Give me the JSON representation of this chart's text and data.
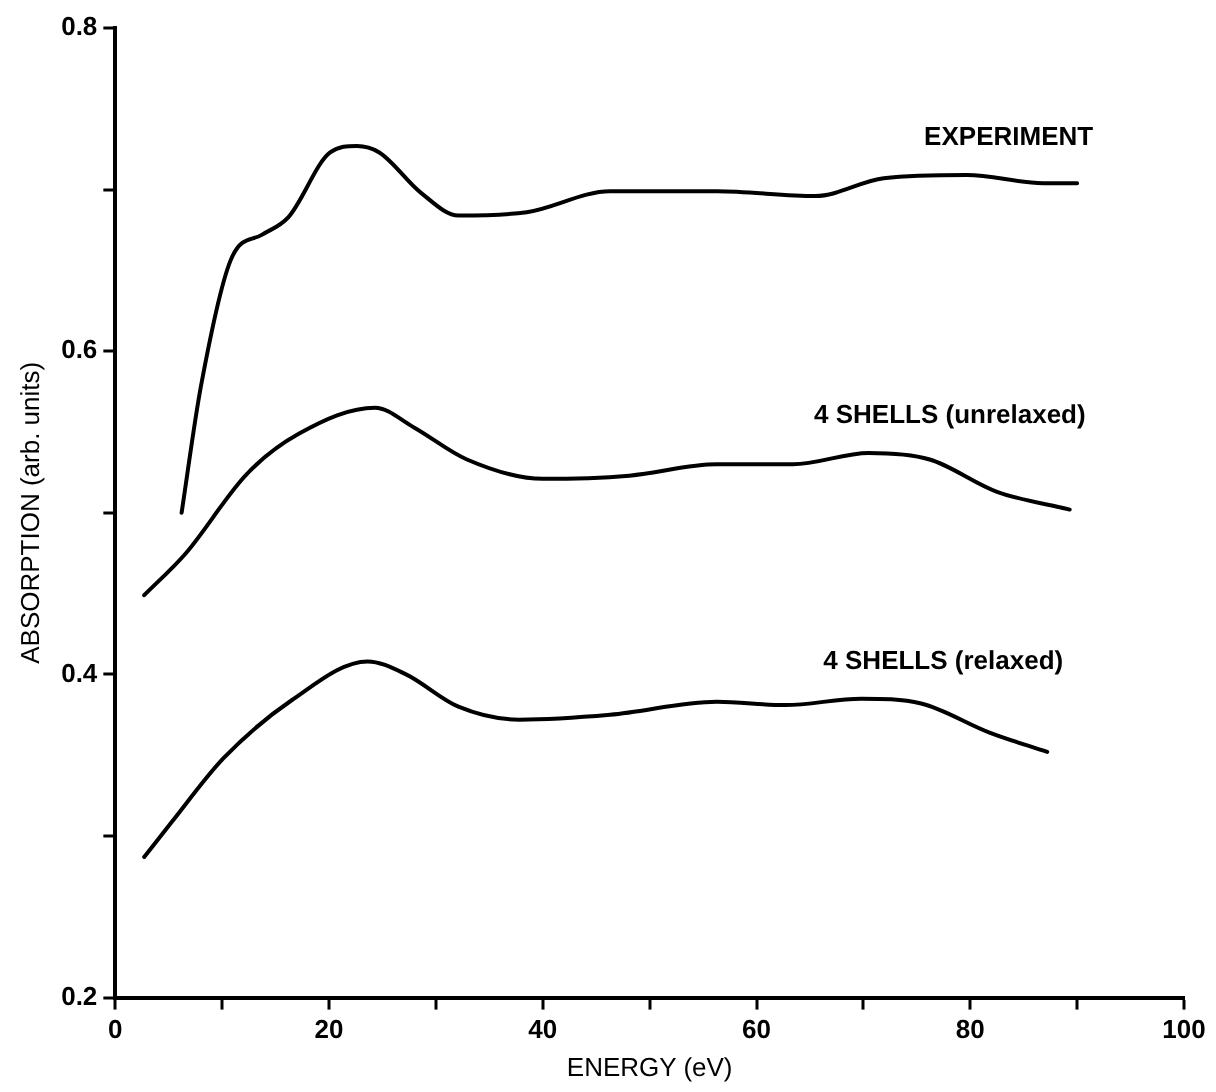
{
  "chart_data": {
    "type": "line",
    "xlabel": "ENERGY (eV)",
    "ylabel": "ABSORPTION (arb. units)",
    "xlim": [
      0,
      100
    ],
    "ylim": [
      0.2,
      0.8
    ],
    "xticks": [
      0,
      {
        "value": 10,
        "label": null
      },
      20,
      {
        "value": 30,
        "label": null
      },
      40,
      {
        "value": 50,
        "label": null
      },
      60,
      {
        "value": 70,
        "label": null
      },
      80,
      {
        "value": 90,
        "label": null
      },
      100
    ],
    "yticks": [
      0.2,
      {
        "value": 0.3,
        "label": null
      },
      0.4,
      {
        "value": 0.5,
        "label": null
      },
      0.6,
      {
        "value": 0.7,
        "label": null
      },
      0.8
    ],
    "legend": false,
    "marker": "none",
    "line_style": "solid",
    "series": [
      {
        "name": "EXPERIMENT",
        "color": "#000000",
        "x": [
          6.2,
          8,
          10.9,
          13.7,
          16.2,
          20.1,
          22.6,
          24.7,
          28.6,
          32.1,
          38.5,
          46.3,
          56.3,
          65.5,
          71.9,
          79.7,
          86.8,
          90
        ],
        "values": [
          0.5,
          0.578,
          0.658,
          0.672,
          0.683,
          0.723,
          0.727,
          0.723,
          0.698,
          0.684,
          0.686,
          0.699,
          0.699,
          0.696,
          0.707,
          0.709,
          0.704,
          0.704
        ]
      },
      {
        "name": "4 SHELLS (unrelaxed)",
        "color": "#000000",
        "x": [
          2.7,
          6.6,
          12.3,
          17.2,
          24.3,
          27.9,
          32.9,
          40,
          48.1,
          56.3,
          63.4,
          70.5,
          76.2,
          82.5,
          89.3
        ],
        "values": [
          0.449,
          0.475,
          0.524,
          0.549,
          0.565,
          0.553,
          0.533,
          0.521,
          0.523,
          0.53,
          0.53,
          0.537,
          0.533,
          0.513,
          0.502
        ]
      },
      {
        "name": "4 SHELLS (relaxed)",
        "color": "#000000",
        "x": [
          2.7,
          5.2,
          10.1,
          16.5,
          23.6,
          27.2,
          32.1,
          37.8,
          46.3,
          56.3,
          62.7,
          69.8,
          75.4,
          81.8,
          87.2
        ],
        "values": [
          0.287,
          0.308,
          0.348,
          0.384,
          0.408,
          0.4,
          0.38,
          0.372,
          0.375,
          0.383,
          0.381,
          0.385,
          0.382,
          0.364,
          0.352
        ]
      }
    ]
  }
}
